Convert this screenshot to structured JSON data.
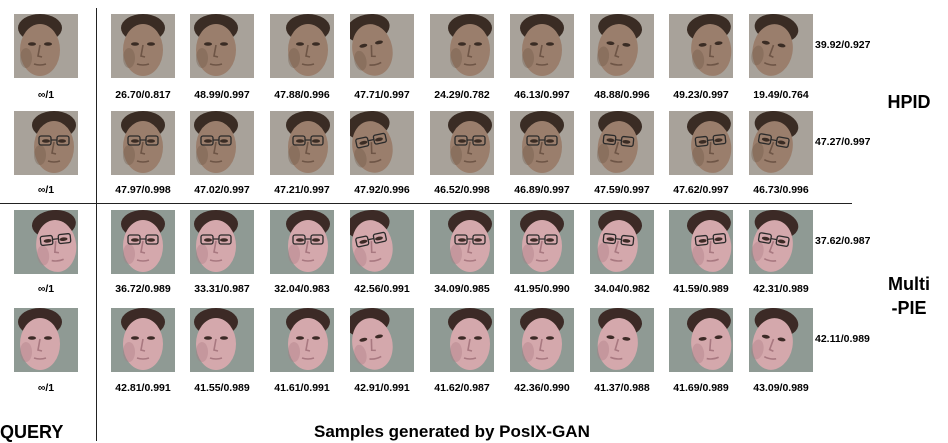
{
  "groups": [
    {
      "label": "HPID",
      "palette": {
        "bg": "#a8a29a",
        "skin": "#9a7e6c",
        "shade": "#6e5546",
        "hair": "#3a2c24"
      },
      "rows": [
        {
          "query_caption": "∞/1",
          "glasses": false,
          "samples": [
            "26.70/0.817",
            "48.99/0.997",
            "47.88/0.996",
            "47.71/0.997",
            "24.29/0.782",
            "46.13/0.997",
            "48.88/0.996",
            "49.23/0.997",
            "19.49/0.764"
          ],
          "row_score": "39.92/0.927"
        },
        {
          "query_caption": "∞/1",
          "glasses": true,
          "samples": [
            "47.97/0.998",
            "47.02/0.997",
            "47.21/0.997",
            "47.92/0.996",
            "46.52/0.998",
            "46.89/0.997",
            "47.59/0.997",
            "47.62/0.997",
            "46.73/0.996"
          ],
          "row_score": "47.27/0.997"
        }
      ]
    },
    {
      "label": "Multi\n-PIE",
      "palette": {
        "bg": "#8f9a94",
        "skin": "#d4a8ac",
        "shade": "#a87880",
        "hair": "#3c2a26"
      },
      "rows": [
        {
          "query_caption": "∞/1",
          "glasses": true,
          "samples": [
            "36.72/0.989",
            "33.31/0.987",
            "32.04/0.983",
            "42.56/0.991",
            "34.09/0.985",
            "41.95/0.990",
            "34.04/0.982",
            "41.59/0.989",
            "42.31/0.989"
          ],
          "row_score": "37.62/0.987"
        },
        {
          "query_caption": "∞/1",
          "glasses": false,
          "samples": [
            "42.81/0.991",
            "41.55/0.989",
            "41.61/0.991",
            "42.91/0.991",
            "41.62/0.987",
            "42.36/0.990",
            "41.37/0.988",
            "41.69/0.989",
            "43.09/0.989"
          ],
          "row_score": "42.11/0.989"
        }
      ]
    }
  ],
  "query_label": "QUERY",
  "footer_label": "Samples generated by PosIX-GAN"
}
